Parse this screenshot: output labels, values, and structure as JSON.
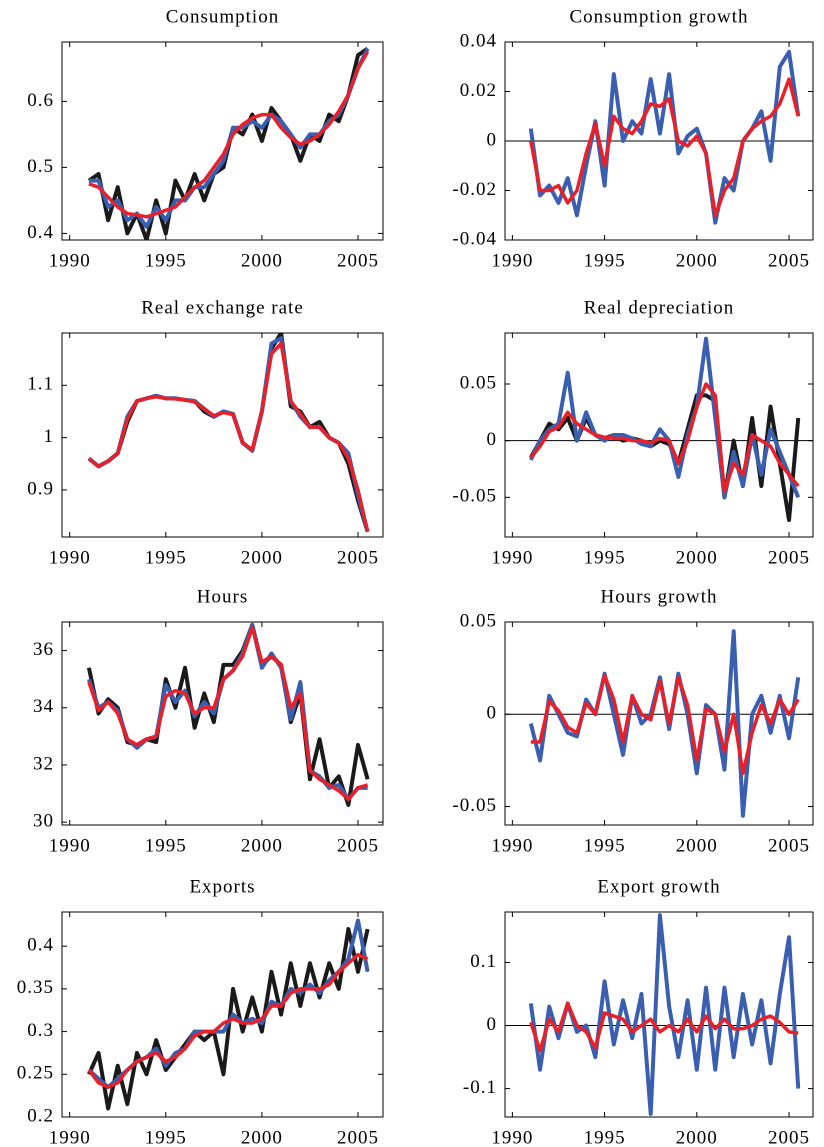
{
  "chart_data": [
    {
      "type": "line",
      "title": "Consumption",
      "x": [
        1991,
        1991.5,
        1992,
        1992.5,
        1993,
        1993.5,
        1994,
        1994.5,
        1995,
        1995.5,
        1996,
        1996.5,
        1997,
        1997.5,
        1998,
        1998.5,
        1999,
        1999.5,
        2000,
        2000.5,
        2001,
        2001.5,
        2002,
        2002.5,
        2003,
        2003.5,
        2004,
        2004.5,
        2005,
        2005.5
      ],
      "xlim": [
        1989.6,
        2006.3
      ],
      "xticks": [
        1990,
        1995,
        2000,
        2005
      ],
      "ylim": [
        0.39,
        0.69
      ],
      "yticks": [
        0.4,
        0.5,
        0.6
      ],
      "series": [
        {
          "color": "#1a1a1a",
          "values": [
            0.48,
            0.49,
            0.42,
            0.47,
            0.4,
            0.43,
            0.39,
            0.45,
            0.4,
            0.48,
            0.45,
            0.49,
            0.45,
            0.49,
            0.5,
            0.56,
            0.55,
            0.58,
            0.54,
            0.59,
            0.57,
            0.55,
            0.51,
            0.55,
            0.54,
            0.58,
            0.57,
            0.61,
            0.67,
            0.68
          ]
        },
        {
          "color": "#3a5fb0",
          "values": [
            0.48,
            0.48,
            0.44,
            0.45,
            0.42,
            0.43,
            0.41,
            0.44,
            0.42,
            0.45,
            0.45,
            0.47,
            0.47,
            0.49,
            0.51,
            0.56,
            0.56,
            0.57,
            0.56,
            0.58,
            0.57,
            0.55,
            0.53,
            0.55,
            0.55,
            0.57,
            0.58,
            0.61,
            0.65,
            0.68
          ]
        },
        {
          "color": "#e8202a",
          "values": [
            0.475,
            0.47,
            0.455,
            0.44,
            0.43,
            0.428,
            0.425,
            0.43,
            0.435,
            0.44,
            0.455,
            0.47,
            0.48,
            0.5,
            0.52,
            0.55,
            0.565,
            0.575,
            0.58,
            0.58,
            0.56,
            0.545,
            0.535,
            0.54,
            0.55,
            0.565,
            0.585,
            0.61,
            0.65,
            0.675
          ]
        }
      ]
    },
    {
      "type": "line",
      "title": "Consumption growth",
      "x": [
        1991,
        1991.5,
        1992,
        1992.5,
        1993,
        1993.5,
        1994,
        1994.5,
        1995,
        1995.5,
        1996,
        1996.5,
        1997,
        1997.5,
        1998,
        1998.5,
        1999,
        1999.5,
        2000,
        2000.5,
        2001,
        2001.5,
        2002,
        2002.5,
        2003,
        2003.5,
        2004,
        2004.5,
        2005,
        2005.5
      ],
      "xlim": [
        1989.6,
        2006.3
      ],
      "xticks": [
        1990,
        1995,
        2000,
        2005
      ],
      "ylim": [
        -0.04,
        0.04
      ],
      "yticks": [
        -0.04,
        -0.02,
        0,
        0.02,
        0.04
      ],
      "hline": 0,
      "series": [
        {
          "color": "#3a5fb0",
          "values": [
            0.005,
            -0.022,
            -0.018,
            -0.025,
            -0.015,
            -0.03,
            -0.01,
            0.008,
            -0.018,
            0.027,
            0,
            0.008,
            0.003,
            0.025,
            0.003,
            0.027,
            -0.005,
            0.002,
            0.005,
            -0.005,
            -0.033,
            -0.015,
            -0.02,
            0,
            0.005,
            0.012,
            -0.008,
            0.03,
            0.036,
            0.01
          ]
        },
        {
          "color": "#e8202a",
          "values": [
            0,
            -0.02,
            -0.02,
            -0.018,
            -0.025,
            -0.02,
            -0.005,
            0.007,
            -0.01,
            0.01,
            0.005,
            0.003,
            0.008,
            0.015,
            0.014,
            0.017,
            0,
            -0.002,
            0.002,
            -0.005,
            -0.03,
            -0.02,
            -0.015,
            0,
            0.005,
            0.008,
            0.01,
            0.015,
            0.025,
            0.01
          ]
        }
      ]
    },
    {
      "type": "line",
      "title": "Real exchange rate",
      "x": [
        1991,
        1991.5,
        1992,
        1992.5,
        1993,
        1993.5,
        1994,
        1994.5,
        1995,
        1995.5,
        1996,
        1996.5,
        1997,
        1997.5,
        1998,
        1998.5,
        1999,
        1999.5,
        2000,
        2000.5,
        2001,
        2001.5,
        2002,
        2002.5,
        2003,
        2003.5,
        2004,
        2004.5,
        2005,
        2005.5
      ],
      "xlim": [
        1989.6,
        2006.3
      ],
      "xticks": [
        1990,
        1995,
        2000,
        2005
      ],
      "ylim": [
        0.81,
        1.2
      ],
      "yticks": [
        0.9,
        1,
        1.1
      ],
      "series": [
        {
          "color": "#1a1a1a",
          "values": [
            0.96,
            0.945,
            0.955,
            0.97,
            1.03,
            1.07,
            1.075,
            1.08,
            1.075,
            1.075,
            1.072,
            1.07,
            1.05,
            1.04,
            1.05,
            1.045,
            0.99,
            0.975,
            1.05,
            1.17,
            1.2,
            1.06,
            1.05,
            1.02,
            1.03,
            1.0,
            0.99,
            0.95,
            0.88,
            0.82
          ]
        },
        {
          "color": "#3a5fb0",
          "values": [
            0.96,
            0.945,
            0.955,
            0.97,
            1.04,
            1.07,
            1.075,
            1.08,
            1.075,
            1.075,
            1.072,
            1.07,
            1.055,
            1.04,
            1.05,
            1.045,
            0.99,
            0.975,
            1.05,
            1.18,
            1.19,
            1.07,
            1.04,
            1.02,
            1.02,
            1.0,
            0.99,
            0.97,
            0.89,
            0.82
          ]
        },
        {
          "color": "#e8202a",
          "values": [
            0.96,
            0.945,
            0.955,
            0.97,
            1.035,
            1.07,
            1.075,
            1.078,
            1.075,
            1.074,
            1.072,
            1.068,
            1.055,
            1.042,
            1.048,
            1.044,
            0.99,
            0.977,
            1.05,
            1.16,
            1.18,
            1.07,
            1.045,
            1.02,
            1.02,
            1.0,
            0.99,
            0.96,
            0.9,
            0.82
          ]
        }
      ]
    },
    {
      "type": "line",
      "title": "Real depreciation",
      "x": [
        1991,
        1991.5,
        1992,
        1992.5,
        1993,
        1993.5,
        1994,
        1994.5,
        1995,
        1995.5,
        1996,
        1996.5,
        1997,
        1997.5,
        1998,
        1998.5,
        1999,
        1999.5,
        2000,
        2000.5,
        2001,
        2001.5,
        2002,
        2002.5,
        2003,
        2003.5,
        2004,
        2004.5,
        2005,
        2005.5
      ],
      "xlim": [
        1989.6,
        2006.3
      ],
      "xticks": [
        1990,
        1995,
        2000,
        2005
      ],
      "ylim": [
        -0.085,
        0.095
      ],
      "yticks": [
        -0.05,
        0,
        0.05
      ],
      "hline": 0,
      "series": [
        {
          "color": "#1a1a1a",
          "values": [
            -0.015,
            0,
            0.015,
            0.01,
            0.02,
            0,
            0.02,
            0.005,
            0.002,
            0.005,
            0,
            0.002,
            0,
            -0.005,
            0,
            -0.003,
            -0.02,
            0.01,
            0.04,
            0.04,
            0.035,
            -0.05,
            0,
            -0.04,
            0.02,
            -0.04,
            0.03,
            -0.02,
            -0.07,
            0.02
          ]
        },
        {
          "color": "#3a5fb0",
          "values": [
            -0.017,
            0,
            0.01,
            0.015,
            0.06,
            0,
            0.025,
            0.005,
            0,
            0.005,
            0.005,
            0.002,
            -0.003,
            -0.005,
            0.01,
            0,
            -0.032,
            0.005,
            0.03,
            0.09,
            0.02,
            -0.05,
            -0.01,
            -0.04,
            0.005,
            -0.03,
            0.01,
            -0.01,
            -0.03,
            -0.05
          ]
        },
        {
          "color": "#e8202a",
          "values": [
            -0.015,
            -0.005,
            0.008,
            0.012,
            0.025,
            0.015,
            0.01,
            0.005,
            0.003,
            0.002,
            0.002,
            0,
            0,
            -0.002,
            0.002,
            0,
            -0.02,
            0,
            0.03,
            0.05,
            0.04,
            -0.045,
            -0.02,
            -0.03,
            0.005,
            0,
            -0.005,
            -0.02,
            -0.03,
            -0.04
          ]
        }
      ]
    },
    {
      "type": "line",
      "title": "Hours",
      "x": [
        1991,
        1991.5,
        1992,
        1992.5,
        1993,
        1993.5,
        1994,
        1994.5,
        1995,
        1995.5,
        1996,
        1996.5,
        1997,
        1997.5,
        1998,
        1998.5,
        1999,
        1999.5,
        2000,
        2000.5,
        2001,
        2001.5,
        2002,
        2002.5,
        2003,
        2003.5,
        2004,
        2004.5,
        2005,
        2005.5
      ],
      "xlim": [
        1989.6,
        2006.3
      ],
      "xticks": [
        1990,
        1995,
        2000,
        2005
      ],
      "ylim": [
        29.9,
        37
      ],
      "yticks": [
        30,
        32,
        34,
        36
      ],
      "series": [
        {
          "color": "#1a1a1a",
          "values": [
            35.4,
            33.8,
            34.3,
            34.0,
            32.8,
            32.7,
            32.9,
            32.8,
            35.0,
            34.0,
            35.4,
            33.3,
            34.5,
            33.5,
            35.5,
            35.5,
            36.0,
            36.9,
            35.5,
            35.8,
            35.5,
            33.5,
            34.5,
            31.5,
            32.9,
            31.2,
            31.6,
            30.6,
            32.7,
            31.5
          ]
        },
        {
          "color": "#3a5fb0",
          "values": [
            35.0,
            34.0,
            34.2,
            33.9,
            32.9,
            32.6,
            32.9,
            33.0,
            34.8,
            34.2,
            34.6,
            33.7,
            34.2,
            33.8,
            35.0,
            35.3,
            35.9,
            36.9,
            35.4,
            35.9,
            35.4,
            33.6,
            34.9,
            31.8,
            31.6,
            31.2,
            31.3,
            30.8,
            31.2,
            31.2
          ]
        },
        {
          "color": "#e8202a",
          "values": [
            34.9,
            33.9,
            34.2,
            33.8,
            32.9,
            32.7,
            32.9,
            33.0,
            34.4,
            34.6,
            34.5,
            33.8,
            34.0,
            34.0,
            35.0,
            35.3,
            35.8,
            36.8,
            35.6,
            35.8,
            35.5,
            34.0,
            34.5,
            31.8,
            31.5,
            31.3,
            31.1,
            30.8,
            31.2,
            31.3
          ]
        }
      ]
    },
    {
      "type": "line",
      "title": "Hours growth",
      "x": [
        1991,
        1991.5,
        1992,
        1992.5,
        1993,
        1993.5,
        1994,
        1994.5,
        1995,
        1995.5,
        1996,
        1996.5,
        1997,
        1997.5,
        1998,
        1998.5,
        1999,
        1999.5,
        2000,
        2000.5,
        2001,
        2001.5,
        2002,
        2002.5,
        2003,
        2003.5,
        2004,
        2004.5,
        2005,
        2005.5
      ],
      "xlim": [
        1989.6,
        2006.3
      ],
      "xticks": [
        1990,
        1995,
        2000,
        2005
      ],
      "ylim": [
        -0.06,
        0.05
      ],
      "yticks": [
        -0.05,
        0,
        0.05
      ],
      "hline": 0,
      "series": [
        {
          "color": "#3a5fb0",
          "values": [
            -0.005,
            -0.025,
            0.01,
            0,
            -0.01,
            -0.012,
            0.008,
            0,
            0.022,
            0,
            -0.022,
            0.01,
            -0.005,
            0,
            0.02,
            -0.008,
            0.022,
            0,
            -0.032,
            0.005,
            0,
            -0.03,
            0.045,
            -0.055,
            0,
            0.01,
            -0.01,
            0.01,
            -0.013,
            0.02
          ]
        },
        {
          "color": "#e8202a",
          "values": [
            -0.015,
            -0.015,
            0.007,
            0.002,
            -0.007,
            -0.01,
            0.006,
            0,
            0.021,
            0.008,
            -0.015,
            0.01,
            0,
            -0.003,
            0.018,
            -0.005,
            0.02,
            0.005,
            -0.025,
            0.003,
            0,
            -0.02,
            0,
            -0.032,
            -0.01,
            0.005,
            -0.005,
            0.008,
            0,
            0.008
          ]
        }
      ]
    },
    {
      "type": "line",
      "title": "Exports",
      "x": [
        1991,
        1991.5,
        1992,
        1992.5,
        1993,
        1993.5,
        1994,
        1994.5,
        1995,
        1995.5,
        1996,
        1996.5,
        1997,
        1997.5,
        1998,
        1998.5,
        1999,
        1999.5,
        2000,
        2000.5,
        2001,
        2001.5,
        2002,
        2002.5,
        2003,
        2003.5,
        2004,
        2004.5,
        2005,
        2005.5
      ],
      "xlim": [
        1989.6,
        2006.3
      ],
      "xticks": [
        1990,
        1995,
        2000,
        2005
      ],
      "ylim": [
        0.2,
        0.44
      ],
      "yticks": [
        0.2,
        0.25,
        0.3,
        0.35,
        0.4
      ],
      "series": [
        {
          "color": "#1a1a1a",
          "values": [
            0.25,
            0.275,
            0.21,
            0.26,
            0.215,
            0.275,
            0.25,
            0.29,
            0.255,
            0.27,
            0.285,
            0.3,
            0.29,
            0.3,
            0.25,
            0.35,
            0.3,
            0.34,
            0.3,
            0.37,
            0.32,
            0.38,
            0.33,
            0.38,
            0.34,
            0.38,
            0.35,
            0.42,
            0.37,
            0.42
          ]
        },
        {
          "color": "#3a5fb0",
          "values": [
            0.255,
            0.245,
            0.235,
            0.245,
            0.255,
            0.265,
            0.27,
            0.28,
            0.26,
            0.275,
            0.28,
            0.3,
            0.3,
            0.3,
            0.3,
            0.32,
            0.31,
            0.315,
            0.31,
            0.335,
            0.33,
            0.35,
            0.345,
            0.355,
            0.345,
            0.36,
            0.37,
            0.385,
            0.43,
            0.37
          ]
        },
        {
          "color": "#e8202a",
          "values": [
            0.255,
            0.24,
            0.235,
            0.24,
            0.255,
            0.265,
            0.27,
            0.275,
            0.265,
            0.27,
            0.28,
            0.295,
            0.3,
            0.3,
            0.31,
            0.315,
            0.31,
            0.31,
            0.315,
            0.33,
            0.33,
            0.345,
            0.35,
            0.35,
            0.35,
            0.355,
            0.37,
            0.38,
            0.39,
            0.385
          ]
        }
      ]
    },
    {
      "type": "line",
      "title": "Export growth",
      "x": [
        1991,
        1991.5,
        1992,
        1992.5,
        1993,
        1993.5,
        1994,
        1994.5,
        1995,
        1995.5,
        1996,
        1996.5,
        1997,
        1997.5,
        1998,
        1998.5,
        1999,
        1999.5,
        2000,
        2000.5,
        2001,
        2001.5,
        2002,
        2002.5,
        2003,
        2003.5,
        2004,
        2004.5,
        2005,
        2005.5
      ],
      "xlim": [
        1989.6,
        2006.3
      ],
      "xticks": [
        1990,
        1995,
        2000,
        2005
      ],
      "ylim": [
        -0.145,
        0.18
      ],
      "yticks": [
        -0.1,
        0,
        0.1
      ],
      "hline": 0,
      "series": [
        {
          "color": "#3a5fb0",
          "values": [
            0.035,
            -0.07,
            0.03,
            -0.02,
            0.035,
            -0.01,
            0,
            -0.05,
            0.07,
            -0.03,
            0.04,
            -0.02,
            0.05,
            -0.14,
            0.175,
            0.03,
            -0.05,
            0.04,
            -0.07,
            0.06,
            -0.07,
            0.06,
            -0.05,
            0.05,
            -0.03,
            0.04,
            -0.06,
            0.05,
            0.14,
            -0.1
          ]
        },
        {
          "color": "#e8202a",
          "values": [
            0.005,
            -0.04,
            0.01,
            -0.01,
            0.035,
            0,
            -0.01,
            -0.035,
            0.02,
            0.015,
            0.01,
            -0.01,
            0,
            0.01,
            -0.01,
            0,
            -0.01,
            0.01,
            -0.01,
            0.015,
            -0.005,
            0.01,
            -0.005,
            -0.005,
            0,
            0.01,
            0.015,
            0.005,
            -0.01,
            -0.012
          ]
        }
      ]
    }
  ]
}
